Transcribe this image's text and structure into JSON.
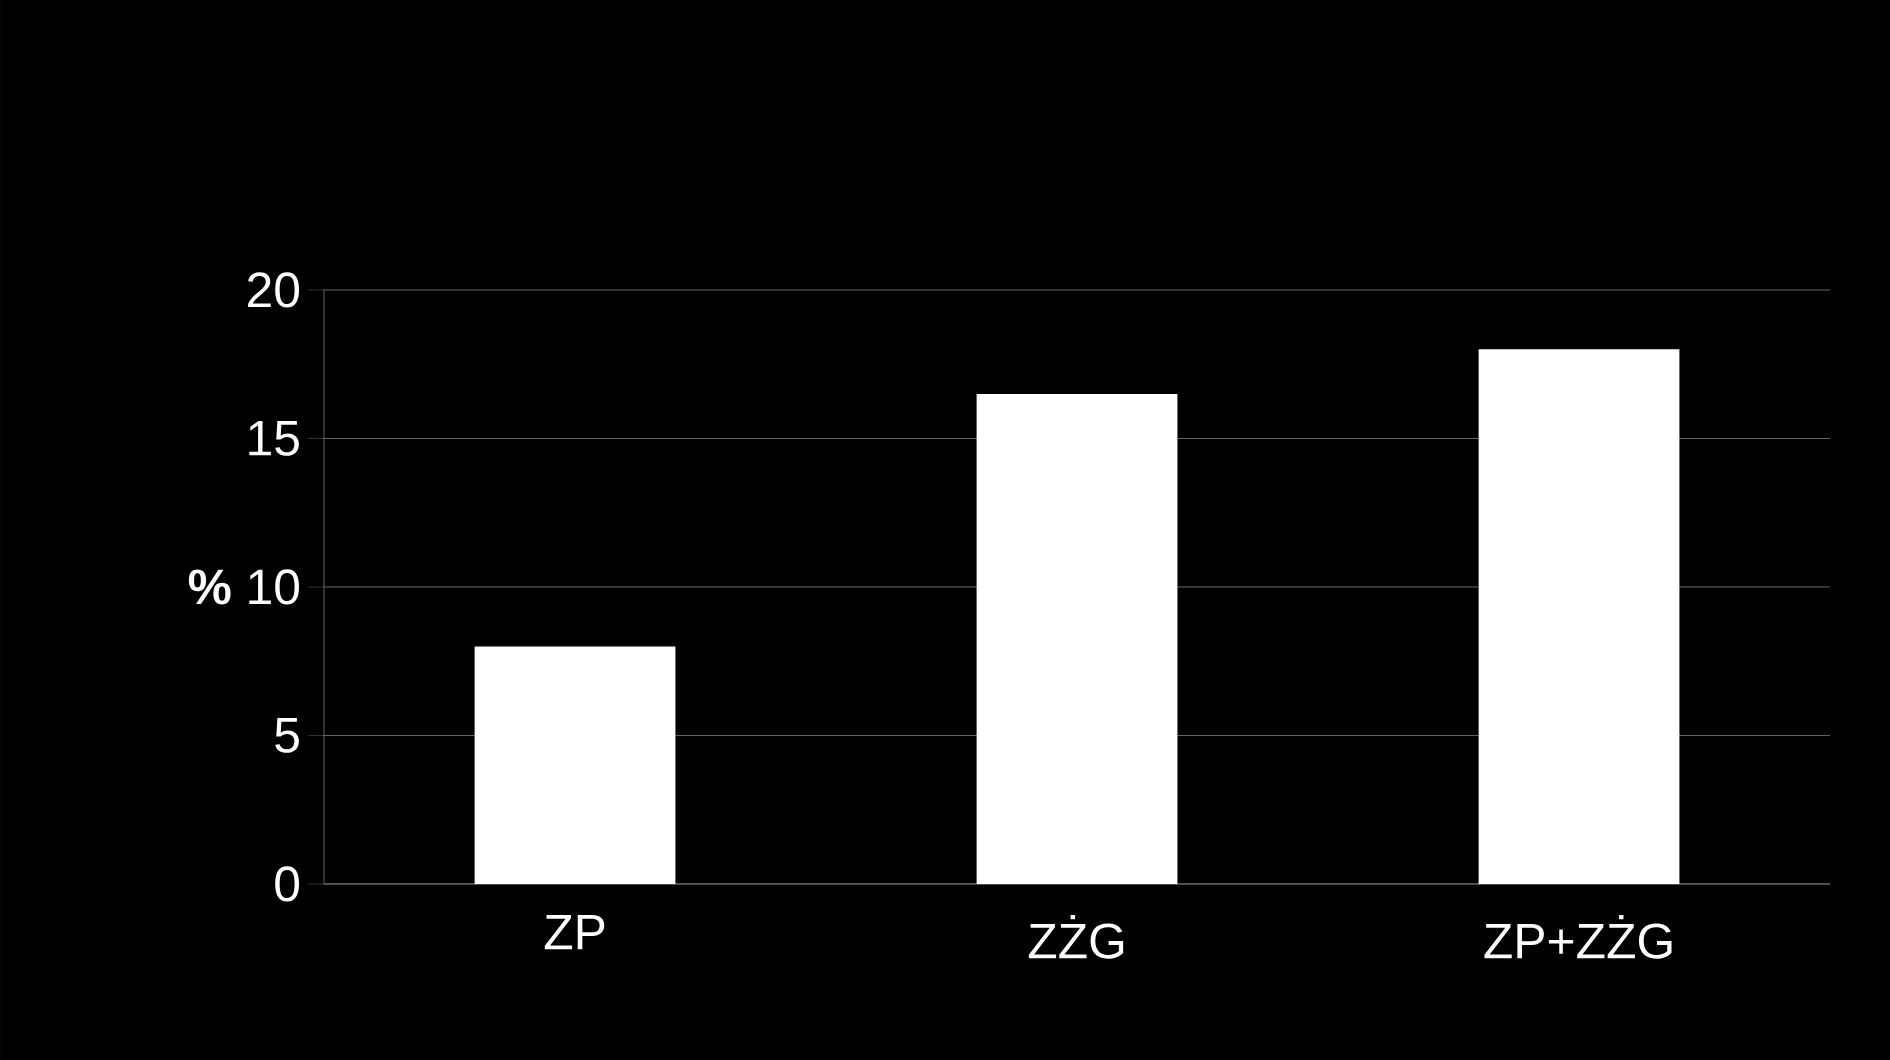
{
  "chart_data": {
    "type": "bar",
    "ylabel": "%",
    "categories": [
      "ZP",
      "ZŻG",
      "ZP+ZŻG"
    ],
    "values": [
      8,
      16.5,
      18
    ],
    "color": "#ffffff",
    "ylim": [
      0,
      20
    ],
    "yticks": [
      0,
      5,
      10,
      15,
      20
    ],
    "grid": "y"
  }
}
